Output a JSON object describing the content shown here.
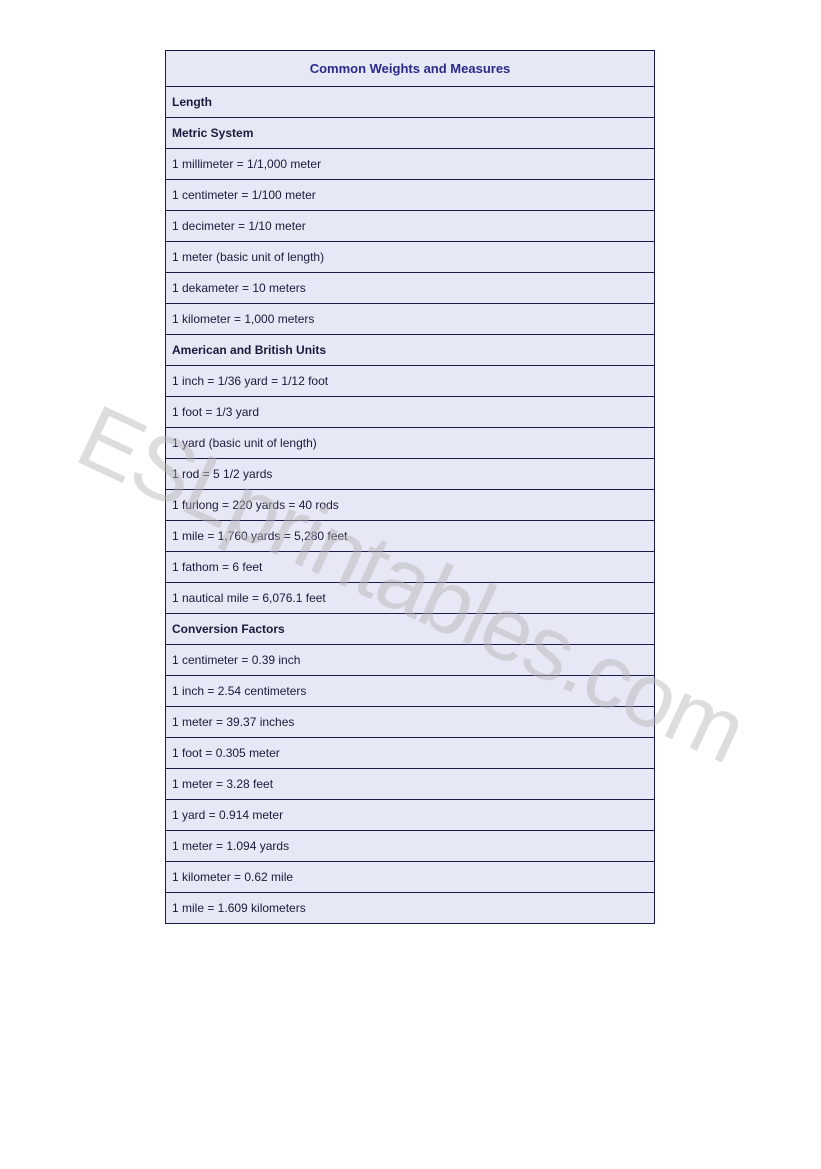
{
  "title": "Common Weights and Measures",
  "watermark": "ESLprintables.com",
  "colors": {
    "cell_bg": "#e6e8f5",
    "border": "#1a1a4a",
    "title_text": "#2a2a8a",
    "body_text": "#1a1a3a",
    "watermark": "rgba(180,180,180,0.45)"
  },
  "sections": [
    {
      "type": "section",
      "label": "Length"
    },
    {
      "type": "section",
      "label": "Metric System"
    },
    {
      "type": "row",
      "text": "1 millimeter = 1/1,000 meter"
    },
    {
      "type": "row",
      "text": "1 centimeter = 1/100 meter"
    },
    {
      "type": "row",
      "text": "1 decimeter = 1/10 meter"
    },
    {
      "type": "row",
      "text": "1 meter (basic unit of length)"
    },
    {
      "type": "row",
      "text": "1 dekameter = 10 meters"
    },
    {
      "type": "row",
      "text": "1 kilometer = 1,000 meters"
    },
    {
      "type": "section",
      "label": "American and British Units"
    },
    {
      "type": "row",
      "text": "1 inch = 1/36 yard = 1/12 foot"
    },
    {
      "type": "row",
      "text": "1 foot = 1/3 yard"
    },
    {
      "type": "row",
      "text": "1 yard (basic unit of length)"
    },
    {
      "type": "row",
      "text": "1 rod = 5 1/2 yards"
    },
    {
      "type": "row",
      "text": "1 furlong = 220 yards = 40 rods"
    },
    {
      "type": "row",
      "text": "1 mile = 1,760 yards = 5,280 feet"
    },
    {
      "type": "row",
      "text": "1 fathom = 6 feet"
    },
    {
      "type": "row",
      "text": "1 nautical mile = 6,076.1 feet"
    },
    {
      "type": "section",
      "label": "Conversion Factors"
    },
    {
      "type": "row",
      "text": "1 centimeter = 0.39 inch"
    },
    {
      "type": "row",
      "text": "1 inch = 2.54 centimeters"
    },
    {
      "type": "row",
      "text": "1 meter = 39.37 inches"
    },
    {
      "type": "row",
      "text": "1 foot = 0.305 meter"
    },
    {
      "type": "row",
      "text": "1 meter = 3.28 feet"
    },
    {
      "type": "row",
      "text": "1 yard = 0.914 meter"
    },
    {
      "type": "row",
      "text": "1 meter = 1.094 yards"
    },
    {
      "type": "row",
      "text": "1 kilometer = 0.62 mile"
    },
    {
      "type": "row",
      "text": "1 mile = 1.609 kilometers"
    }
  ]
}
